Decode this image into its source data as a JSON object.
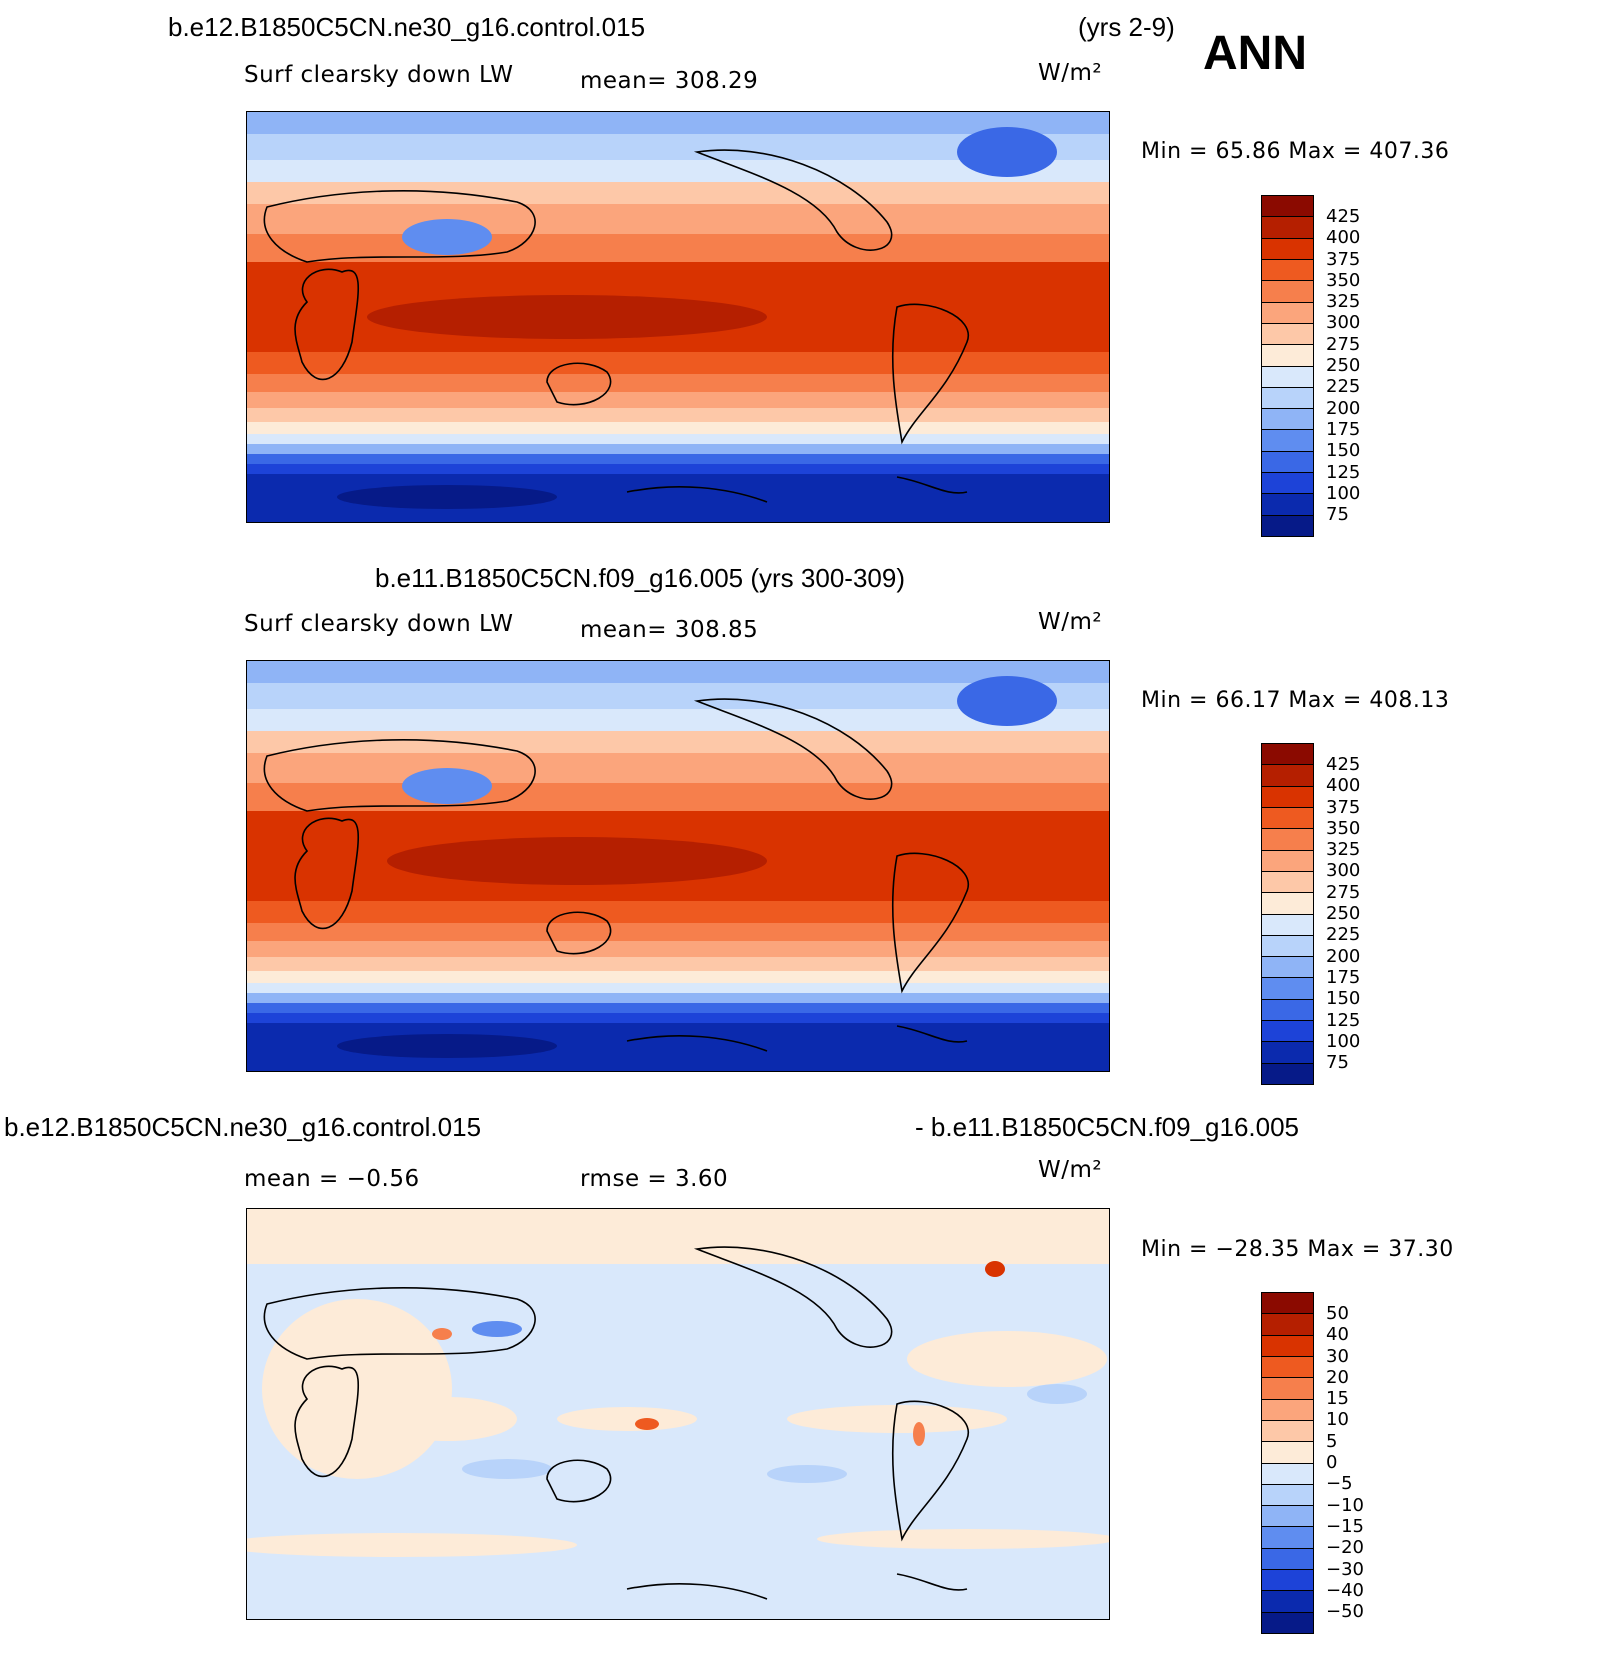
{
  "season": "ANN",
  "units": "W/m²",
  "panels": [
    {
      "case": "b.e12.B1850C5CN.ne30_g16.control.015",
      "years": "(yrs 2-9)",
      "variable": "Surf clearsky down LW",
      "mean": "mean=  308.29",
      "minmax": "Min =   65.86  Max  =  407.36",
      "levels": [
        "425",
        "400",
        "375",
        "350",
        "325",
        "300",
        "275",
        "250",
        "225",
        "200",
        "175",
        "150",
        "125",
        "100",
        "75"
      ]
    },
    {
      "case": "b.e11.B1850C5CN.f09_g16.005 (yrs 300-309)",
      "variable": "Surf clearsky down LW",
      "mean": "mean=  308.85",
      "minmax": "Min =   66.17  Max  =  408.13",
      "levels": [
        "425",
        "400",
        "375",
        "350",
        "325",
        "300",
        "275",
        "250",
        "225",
        "200",
        "175",
        "150",
        "125",
        "100",
        "75"
      ]
    },
    {
      "case_left": "b.e12.B1850C5CN.ne30_g16.control.015",
      "case_right": "- b.e11.B1850C5CN.f09_g16.005",
      "mean": "mean =   −0.56",
      "rmse": "rmse =    3.60",
      "minmax": "Min = −28.35  Max =   37.30",
      "levels": [
        "50",
        "40",
        "30",
        "20",
        "15",
        "10",
        "5",
        "0",
        "−5",
        "−10",
        "−15",
        "−20",
        "−30",
        "−40",
        "−50"
      ]
    }
  ],
  "colors": {
    "abs_scale": [
      "#8b0a00",
      "#b51f00",
      "#d93300",
      "#ee5a20",
      "#f67f4c",
      "#fba57c",
      "#fdc8a8",
      "#fdebd8",
      "#d9e8fb",
      "#b8d3fa",
      "#8fb4f6",
      "#5f8df0",
      "#3a68e6",
      "#1d43d8",
      "#0b2aae",
      "#061a88"
    ],
    "diff_scale": [
      "#8b0a00",
      "#b51f00",
      "#d93300",
      "#ee5a20",
      "#f67f4c",
      "#fba57c",
      "#fdc8a8",
      "#fdebd8",
      "#d9e8fb",
      "#b8d3fa",
      "#8fb4f6",
      "#5f8df0",
      "#3a68e6",
      "#1d43d8",
      "#0b2aae",
      "#061a88"
    ]
  }
}
